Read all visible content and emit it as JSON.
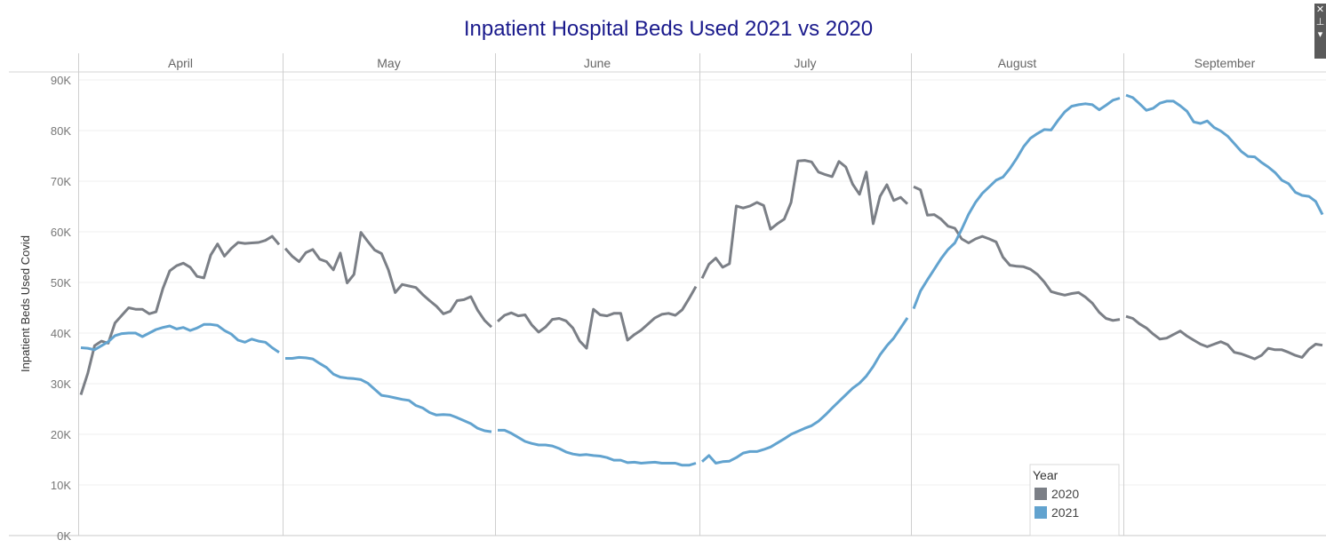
{
  "chart_data": {
    "type": "line",
    "title": "Inpatient Hospital Beds Used 2021 vs 2020",
    "ylabel": "Inpatient Beds Used Covid",
    "xlabel": "",
    "ylim": [
      0,
      92000
    ],
    "y_ticks": [
      "0K",
      "10K",
      "20K",
      "30K",
      "40K",
      "50K",
      "60K",
      "70K",
      "80K",
      "90K"
    ],
    "y_tick_values": [
      0,
      10000,
      20000,
      30000,
      40000,
      50000,
      60000,
      70000,
      80000,
      90000
    ],
    "grid": true,
    "legend": {
      "title": "Year",
      "position": "bottom-right"
    },
    "colors": {
      "2020": "#7b7f86",
      "2021": "#62a3cf"
    },
    "months": [
      {
        "name": "April",
        "days": 30
      },
      {
        "name": "May",
        "days": 31
      },
      {
        "name": "June",
        "days": 30
      },
      {
        "name": "July",
        "days": 31
      },
      {
        "name": "August",
        "days": 31
      },
      {
        "name": "September",
        "days": 30
      }
    ],
    "series": [
      {
        "name": "2020",
        "months": [
          [
            27800,
            32000,
            37500,
            38400,
            38000,
            42000,
            43500,
            45000,
            44700,
            44700,
            43800,
            44200,
            48800,
            52300,
            53300,
            53800,
            53000,
            51200,
            50900,
            55400,
            57600,
            55200,
            56700,
            57900,
            57700,
            57800,
            57900,
            58300,
            59100,
            57500
          ],
          [
            56700,
            55200,
            54100,
            55900,
            56500,
            54600,
            54100,
            52500,
            55800,
            49900,
            51600,
            59900,
            58100,
            56400,
            55700,
            52500,
            48000,
            49600,
            49300,
            49000,
            47600,
            46400,
            45300,
            43800,
            44300,
            46400,
            46600,
            47200,
            44500,
            42500,
            41200
          ],
          [
            42300,
            43500,
            44000,
            43400,
            43600,
            41600,
            40200,
            41200,
            42700,
            42900,
            42400,
            41000,
            38400,
            37000,
            44700,
            43600,
            43400,
            43900,
            43900,
            38600,
            39700,
            40600,
            41800,
            43000,
            43700,
            43900,
            43500,
            44600,
            46800,
            49200
          ],
          [
            50800,
            53600,
            54800,
            53000,
            53700,
            65100,
            64700,
            65100,
            65800,
            65200,
            60500,
            61600,
            62500,
            65800,
            74000,
            74100,
            73800,
            71800,
            71300,
            70900,
            73900,
            72800,
            69400,
            67400,
            71800,
            61600,
            67000,
            69300,
            66200,
            66800,
            65500
          ],
          [
            68900,
            68300,
            63300,
            63400,
            62500,
            61100,
            60700,
            58600,
            57800,
            58600,
            59100,
            58600,
            58000,
            55000,
            53400,
            53200,
            53100,
            52600,
            51600,
            50100,
            48200,
            47800,
            47500,
            47800,
            48000,
            47100,
            45900,
            44100,
            42900,
            42500,
            42700
          ],
          [
            43300,
            42900,
            41800,
            41000,
            39800,
            38800,
            39000,
            39700,
            40400,
            39400,
            38600,
            37800,
            37300,
            37800,
            38300,
            37700,
            36200,
            35900,
            35400,
            34900,
            35600,
            37000,
            36700,
            36700,
            36200,
            35600,
            35200,
            36800,
            37800,
            37600
          ]
        ]
      },
      {
        "name": "2021",
        "months": [
          [
            37100,
            37000,
            36700,
            37500,
            38300,
            39500,
            39900,
            40000,
            40000,
            39300,
            40000,
            40700,
            41100,
            41400,
            40800,
            41100,
            40500,
            41000,
            41700,
            41700,
            41500,
            40500,
            39800,
            38600,
            38200,
            38800,
            38400,
            38200,
            37100,
            36200
          ],
          [
            35000,
            35000,
            35200,
            35100,
            34900,
            34000,
            33200,
            31900,
            31300,
            31100,
            31000,
            30800,
            30100,
            28900,
            27700,
            27500,
            27200,
            26900,
            26700,
            25700,
            25200,
            24300,
            23800,
            23900,
            23800,
            23300,
            22700,
            22100,
            21200,
            20700,
            20500
          ],
          [
            20800,
            20800,
            20200,
            19400,
            18600,
            18200,
            17900,
            17900,
            17700,
            17200,
            16500,
            16100,
            15900,
            16000,
            15800,
            15700,
            15400,
            14900,
            14900,
            14400,
            14500,
            14300,
            14400,
            14500,
            14300,
            14300,
            14300,
            13900,
            13900,
            14300
          ],
          [
            14600,
            15800,
            14300,
            14600,
            14700,
            15400,
            16300,
            16600,
            16600,
            17000,
            17500,
            18300,
            19100,
            20000,
            20600,
            21200,
            21700,
            22600,
            23800,
            25200,
            26500,
            27800,
            29100,
            30100,
            31500,
            33400,
            35700,
            37500,
            39000,
            41000,
            43000
          ],
          [
            44800,
            48300,
            50500,
            52600,
            54700,
            56500,
            57800,
            60500,
            63500,
            65800,
            67600,
            68900,
            70200,
            70800,
            72500,
            74500,
            76800,
            78500,
            79400,
            80200,
            80100,
            82000,
            83700,
            84800,
            85100,
            85300,
            85100,
            84100,
            85000,
            86000,
            86400
          ],
          [
            87000,
            86500,
            85300,
            84000,
            84400,
            85400,
            85800,
            85800,
            84900,
            83800,
            81700,
            81400,
            81900,
            80600,
            79900,
            78900,
            77400,
            75900,
            74900,
            74800,
            73700,
            72800,
            71700,
            70200,
            69500,
            67800,
            67200,
            67000,
            66000,
            63400
          ]
        ]
      }
    ]
  }
}
